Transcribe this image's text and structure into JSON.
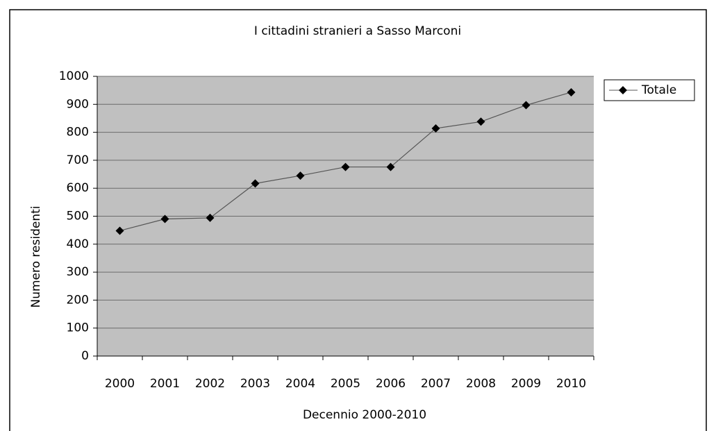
{
  "chart_data": {
    "type": "line",
    "title": "I cittadini stranieri a Sasso Marconi",
    "x_label": "Decennio 2000-2010",
    "y_label": "Numero residenti",
    "categories": [
      "2000",
      "2001",
      "2002",
      "2003",
      "2004",
      "2005",
      "2006",
      "2007",
      "2008",
      "2009",
      "2010"
    ],
    "series": [
      {
        "name": "Totale",
        "color": "#000000",
        "values": [
          448,
          490,
          494,
          617,
          645,
          676,
          676,
          814,
          838,
          897,
          943
        ]
      }
    ],
    "ylim": [
      0,
      1000
    ],
    "yticks": [
      0,
      100,
      200,
      300,
      400,
      500,
      600,
      700,
      800,
      900,
      1000
    ],
    "grid": true,
    "legend": "right"
  }
}
